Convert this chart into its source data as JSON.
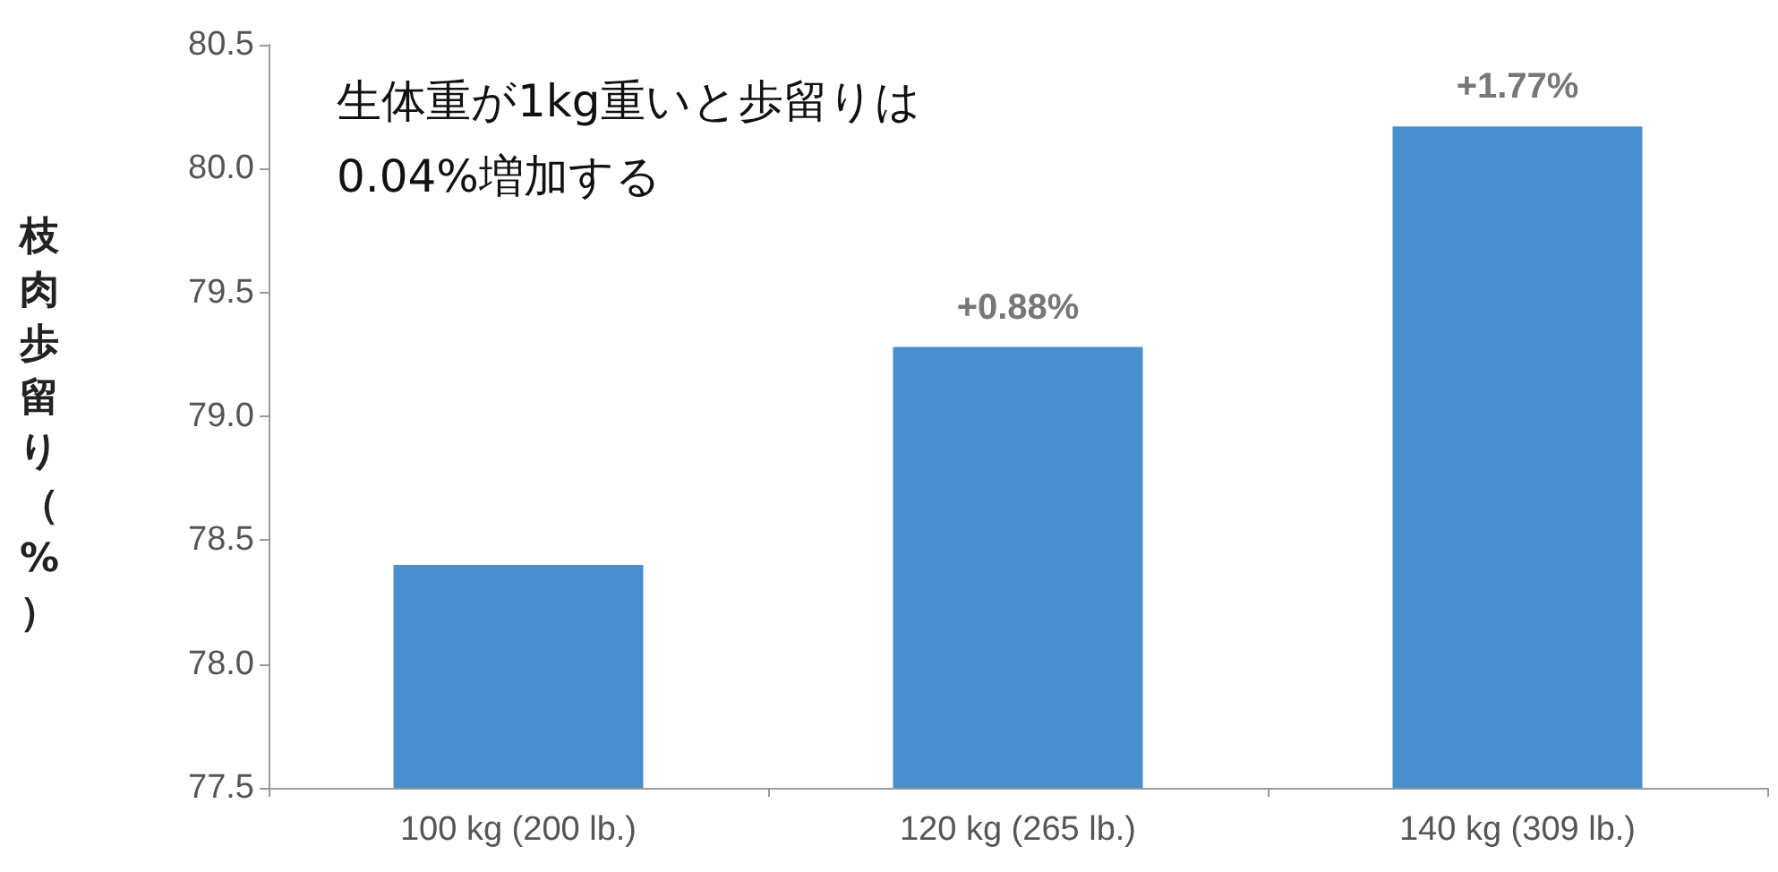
{
  "chart_data": {
    "type": "bar",
    "ylabel": "枝肉歩留り（%）",
    "categories": [
      "100 kg (200 lb.)",
      "120 kg (265 lb.)",
      "140 kg (309 lb.)"
    ],
    "values": [
      78.4,
      79.28,
      80.17
    ],
    "color": "#4a8fcd",
    "ylim": [
      77.5,
      80.5
    ],
    "yticks": [
      77.5,
      {
        "value": 78,
        "label": "78.0"
      },
      78.5,
      {
        "value": 79,
        "label": "79.0"
      },
      79.5,
      {
        "value": 80,
        "label": "80.0"
      },
      80.5
    ],
    "annotations": [
      "生体重が1kg重いと歩留りは\n0.04%増加する",
      {
        "text": "+0.88%",
        "x": "120 kg (265 lb.)",
        "y": 79.28
      },
      {
        "text": "+1.77%",
        "x": "140 kg (309 lb.)",
        "y": 80.17
      }
    ],
    "grid": false
  }
}
